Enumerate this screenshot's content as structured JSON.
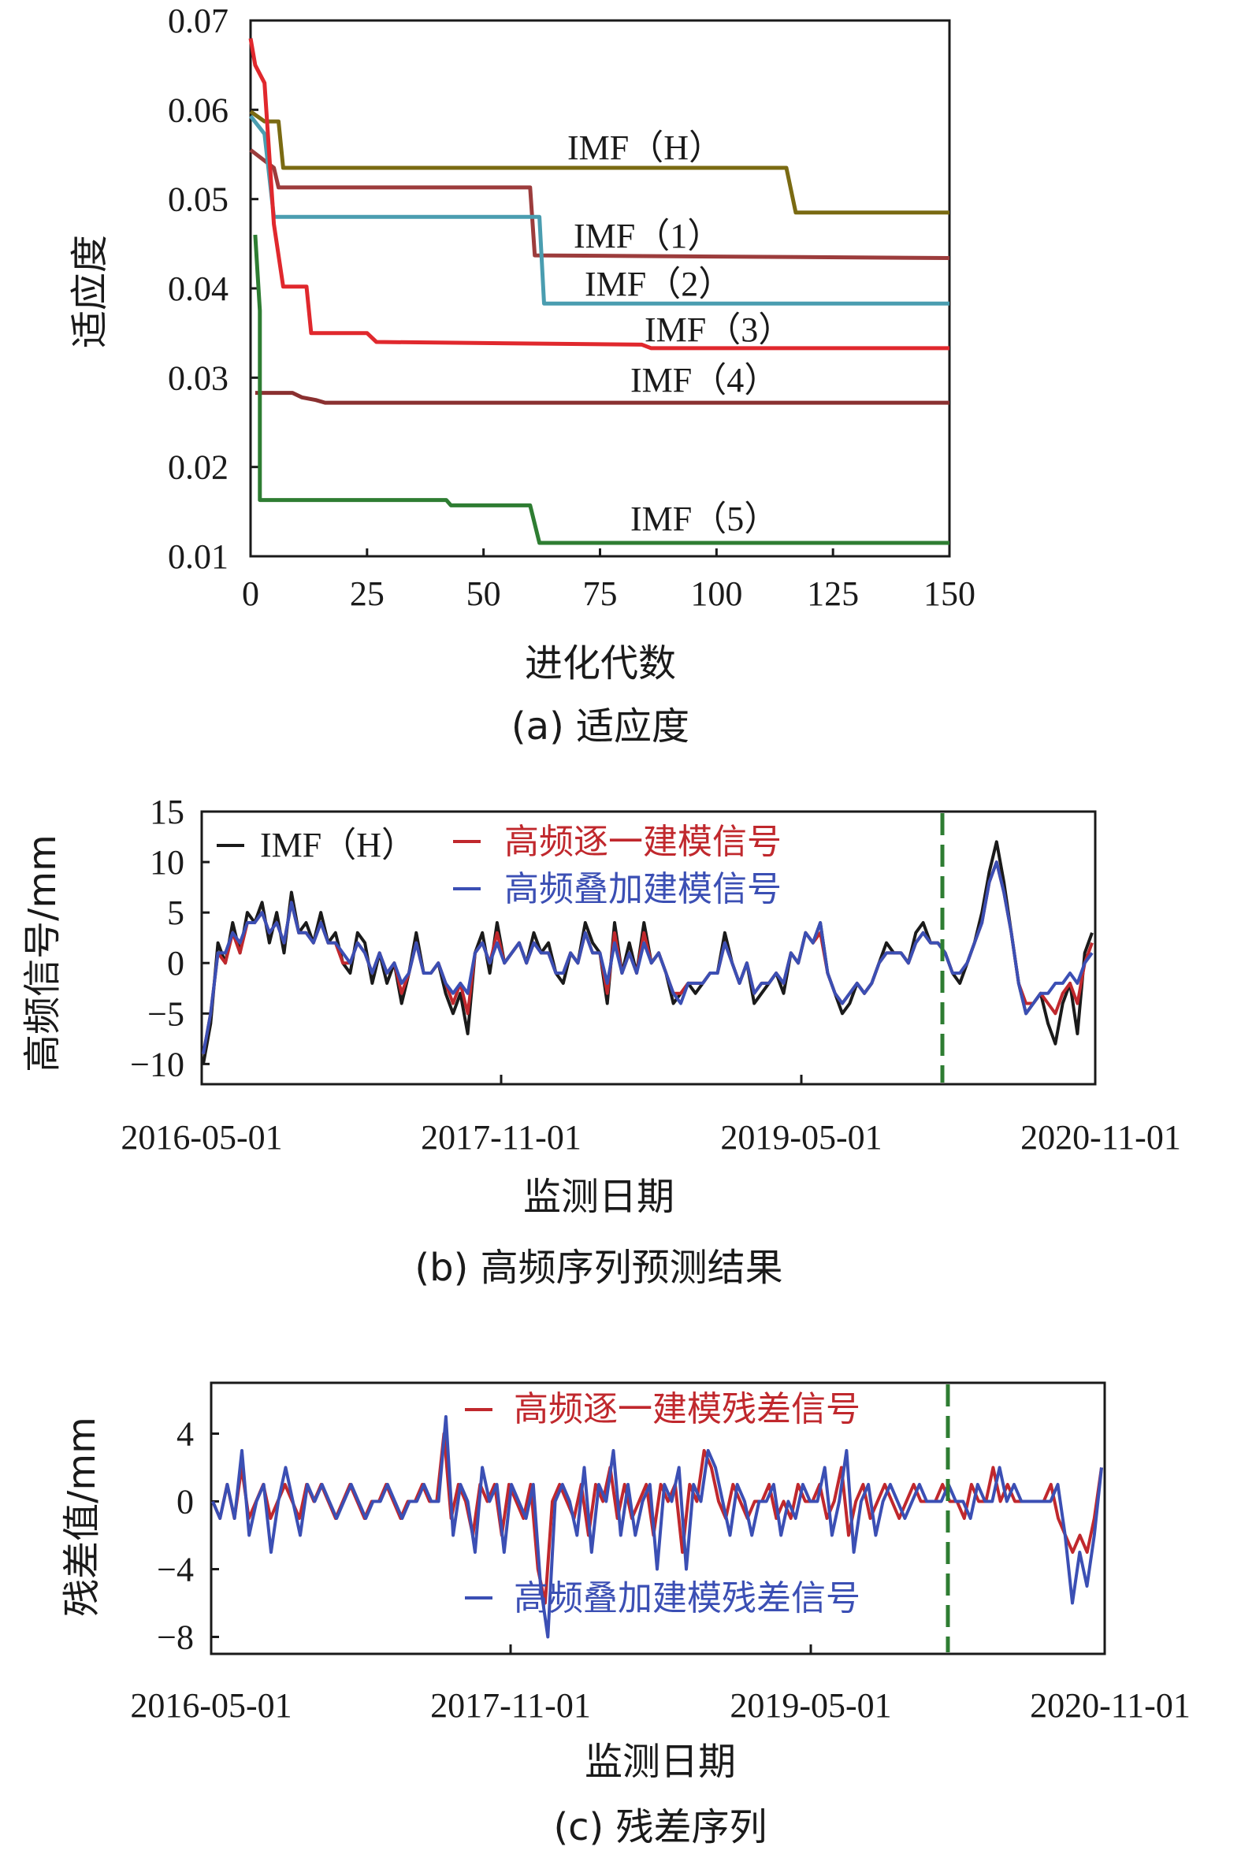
{
  "chart_data": [
    {
      "type": "line",
      "caption": "(a) 适应度",
      "xlabel": "进化代数",
      "ylabel": "适应度",
      "xlim": [
        0,
        150
      ],
      "ylim": [
        0.01,
        0.07
      ],
      "xticks": [
        "0",
        "25",
        "50",
        "75",
        "100",
        "125",
        "150"
      ],
      "yticks": [
        "0.01",
        "0.02",
        "0.03",
        "0.04",
        "0.05",
        "0.06",
        "0.07"
      ],
      "series": [
        {
          "name": "IMF（H）",
          "color": "#7a6a12",
          "points": [
            [
              0,
              0.0598
            ],
            [
              3,
              0.0587
            ],
            [
              6,
              0.0587
            ],
            [
              7,
              0.0535
            ],
            [
              115,
              0.0535
            ],
            [
              117,
              0.0485
            ],
            [
              150,
              0.0485
            ]
          ]
        },
        {
          "name": "IMF（1）",
          "color": "#9c3c3c",
          "points": [
            [
              0,
              0.0555
            ],
            [
              5,
              0.0535
            ],
            [
              6,
              0.0513
            ],
            [
              60,
              0.0513
            ],
            [
              61,
              0.0437
            ],
            [
              150,
              0.0434
            ]
          ]
        },
        {
          "name": "IMF（2）",
          "color": "#4a9db0",
          "points": [
            [
              0,
              0.0593
            ],
            [
              3,
              0.0573
            ],
            [
              5,
              0.048
            ],
            [
              62,
              0.048
            ],
            [
              63,
              0.0383
            ],
            [
              150,
              0.0383
            ]
          ]
        },
        {
          "name": "IMF（3）",
          "color": "#e0282d",
          "points": [
            [
              0,
              0.068
            ],
            [
              1,
              0.065
            ],
            [
              3,
              0.063
            ],
            [
              5,
              0.0472
            ],
            [
              7,
              0.0402
            ],
            [
              12,
              0.0402
            ],
            [
              13,
              0.035
            ],
            [
              25,
              0.035
            ],
            [
              27,
              0.034
            ],
            [
              84,
              0.0337
            ],
            [
              86,
              0.0333
            ],
            [
              150,
              0.0333
            ]
          ]
        },
        {
          "name": "IMF（4）",
          "color": "#8a3030",
          "points": [
            [
              1,
              0.0283
            ],
            [
              9,
              0.0283
            ],
            [
              11,
              0.0278
            ],
            [
              14,
              0.0275
            ],
            [
              16,
              0.0272
            ],
            [
              150,
              0.0272
            ]
          ]
        },
        {
          "name": "IMF（5）",
          "color": "#2e7d32",
          "points": [
            [
              1,
              0.046
            ],
            [
              2,
              0.0375
            ],
            [
              2,
              0.0163
            ],
            [
              42,
              0.0163
            ],
            [
              43,
              0.0157
            ],
            [
              60,
              0.0157
            ],
            [
              62,
              0.0115
            ],
            [
              150,
              0.0115
            ]
          ]
        }
      ]
    },
    {
      "type": "line",
      "caption": "(b) 高频序列预测结果",
      "xlabel": "监测日期",
      "ylabel": "高频信号/mm",
      "ylim": [
        -12,
        15
      ],
      "xticks": [
        "2016-05-01",
        "2017-11-01",
        "2019-05-01",
        "2020-11-01"
      ],
      "yticks": [
        "−10",
        "−5",
        "0",
        "5",
        "10",
        "15"
      ],
      "split_line": "dashed vertical line marking start of forecast",
      "series": [
        {
          "name": "IMF（H）",
          "color": "#1a1a1a",
          "values": [
            -10,
            -6,
            2,
            0,
            4,
            1,
            5,
            4,
            6,
            2,
            5,
            1,
            7,
            3,
            4,
            2,
            5,
            2,
            3,
            0,
            -1,
            3,
            2,
            -2,
            1,
            -2,
            0,
            -4,
            -1,
            3,
            -1,
            -1,
            0,
            -3,
            -5,
            -3,
            -7,
            1,
            3,
            -1,
            4,
            0,
            1,
            2,
            0,
            3,
            1,
            2,
            -1,
            -2,
            1,
            0,
            4,
            2,
            1,
            -4,
            4,
            -1,
            2,
            -1,
            4,
            0,
            1,
            -1,
            -4,
            -3,
            -2,
            -3,
            -2,
            -1,
            -1,
            3,
            0,
            -2,
            0,
            -4,
            -3,
            -2,
            -1,
            -3,
            1,
            0,
            3,
            2,
            4,
            -1,
            -3,
            -5,
            -4,
            -2,
            -3,
            -2,
            0,
            2,
            1,
            1,
            0,
            3,
            4,
            2,
            2,
            1,
            -1,
            -2,
            0,
            2,
            5,
            9,
            12,
            8,
            3,
            -2,
            -5,
            -4,
            -3,
            -6,
            -8,
            -4,
            -2,
            -7,
            1,
            3
          ]
        },
        {
          "name": "高频逐一建模信号",
          "color": "#c0282d",
          "values": [
            -9,
            -5,
            1,
            0,
            3,
            1,
            4,
            4,
            5,
            3,
            4,
            2,
            6,
            3,
            3,
            2,
            4,
            2,
            2,
            0,
            0,
            2,
            1,
            -1,
            1,
            -1,
            0,
            -3,
            -1,
            2,
            -1,
            -1,
            0,
            -2,
            -4,
            -2,
            -5,
            1,
            2,
            0,
            3,
            0,
            1,
            2,
            0,
            2,
            1,
            1,
            -1,
            -1,
            1,
            0,
            3,
            1,
            1,
            -3,
            3,
            -1,
            1,
            -1,
            3,
            0,
            1,
            -1,
            -3,
            -3,
            -2,
            -2,
            -2,
            -1,
            -1,
            2,
            0,
            -2,
            0,
            -3,
            -2,
            -2,
            -1,
            -2,
            1,
            0,
            3,
            2,
            3,
            -1,
            -3,
            -4,
            -3,
            -2,
            -3,
            -2,
            0,
            1,
            1,
            1,
            0,
            2,
            3,
            2,
            2,
            1,
            -1,
            -1,
            0,
            2,
            4,
            8,
            10,
            7,
            3,
            -2,
            -4,
            -4,
            -3,
            -4,
            -5,
            -3,
            -2,
            -4,
            0,
            2
          ]
        },
        {
          "name": "高频叠加建模信号",
          "color": "#3b4fb4",
          "values": [
            -9,
            -5,
            1,
            1,
            3,
            2,
            4,
            4,
            5,
            3,
            4,
            2,
            6,
            3,
            3,
            2,
            4,
            2,
            2,
            1,
            0,
            2,
            1,
            -1,
            1,
            -1,
            0,
            -2,
            -1,
            2,
            -1,
            -1,
            0,
            -2,
            -3,
            -2,
            -3,
            1,
            2,
            0,
            2,
            0,
            1,
            2,
            0,
            2,
            1,
            1,
            -1,
            -1,
            1,
            0,
            3,
            1,
            1,
            -2,
            2,
            -1,
            1,
            -1,
            2,
            0,
            1,
            -1,
            -3,
            -4,
            -2,
            -2,
            -2,
            -1,
            -1,
            2,
            0,
            -2,
            0,
            -3,
            -2,
            -2,
            -1,
            -2,
            1,
            0,
            3,
            2,
            4,
            -1,
            -3,
            -4,
            -3,
            -2,
            -3,
            -2,
            0,
            1,
            1,
            1,
            0,
            2,
            3,
            2,
            2,
            1,
            -1,
            -1,
            0,
            2,
            4,
            8,
            10,
            7,
            3,
            -2,
            -5,
            -4,
            -3,
            -3,
            -2,
            -2,
            -1,
            -2,
            0,
            1
          ]
        }
      ]
    },
    {
      "type": "line",
      "caption": "(c) 残差序列",
      "xlabel": "监测日期",
      "ylabel": "残差值/mm",
      "ylim": [
        -9,
        7
      ],
      "xticks": [
        "2016-05-01",
        "2017-11-01",
        "2019-05-01",
        "2020-11-01"
      ],
      "yticks": [
        "4",
        "0",
        "−4",
        "−8"
      ],
      "split_line": "dashed vertical line marking start of forecast",
      "series": [
        {
          "name": "高频逐一建模残差信号",
          "color": "#c0282d",
          "values": [
            0,
            -1,
            1,
            -1,
            2,
            -1,
            0,
            1,
            -1,
            0,
            1,
            0,
            -1,
            1,
            0,
            1,
            0,
            -1,
            0,
            1,
            0,
            -1,
            0,
            0,
            1,
            0,
            -1,
            0,
            0,
            1,
            0,
            0,
            4,
            -1,
            1,
            0,
            -2,
            1,
            0,
            1,
            -2,
            1,
            0,
            -1,
            1,
            -4,
            -6,
            0,
            1,
            0,
            -1,
            1,
            -2,
            1,
            0,
            2,
            -1,
            1,
            -1,
            0,
            1,
            -2,
            1,
            0,
            1,
            -3,
            1,
            0,
            3,
            2,
            0,
            -1,
            1,
            0,
            -1,
            0,
            0,
            1,
            -1,
            0,
            -1,
            1,
            0,
            0,
            1,
            -1,
            0,
            2,
            -2,
            0,
            1,
            -1,
            0,
            1,
            0,
            -1,
            0,
            1,
            0,
            0,
            0,
            1,
            0,
            0,
            -1,
            1,
            0,
            0,
            2,
            0,
            1,
            0,
            0,
            0,
            0,
            0,
            1,
            -1,
            -2,
            -3,
            -2,
            -3,
            -1,
            2
          ]
        },
        {
          "name": "高频叠加建模残差信号",
          "color": "#3b4fb4",
          "values": [
            0,
            -1,
            1,
            -1,
            3,
            -2,
            0,
            1,
            -3,
            0,
            2,
            0,
            -2,
            1,
            0,
            1,
            0,
            -1,
            0,
            1,
            0,
            -1,
            0,
            0,
            1,
            0,
            -1,
            0,
            0,
            1,
            0,
            0,
            5,
            -2,
            1,
            0,
            -3,
            2,
            0,
            1,
            -3,
            1,
            0,
            -1,
            1,
            -5,
            -8,
            0,
            1,
            0,
            -2,
            2,
            -3,
            1,
            0,
            3,
            -2,
            1,
            -2,
            0,
            1,
            -4,
            1,
            0,
            2,
            -4,
            1,
            0,
            3,
            2,
            0,
            -2,
            1,
            0,
            -2,
            0,
            0,
            1,
            -2,
            0,
            -1,
            1,
            0,
            0,
            2,
            -2,
            0,
            3,
            -3,
            0,
            1,
            -2,
            0,
            1,
            0,
            -1,
            0,
            1,
            0,
            0,
            0,
            1,
            0,
            0,
            -1,
            1,
            0,
            0,
            2,
            0,
            1,
            0,
            0,
            0,
            0,
            0,
            1,
            -2,
            -6,
            -3,
            -5,
            -2,
            2
          ]
        }
      ]
    }
  ]
}
